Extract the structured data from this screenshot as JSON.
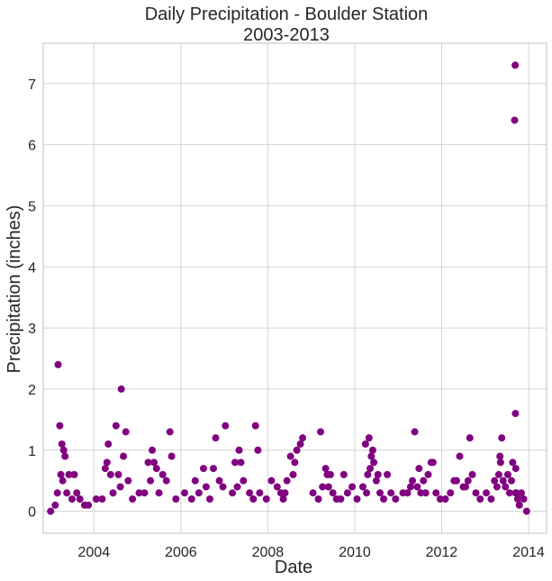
{
  "chart_data": {
    "type": "scatter",
    "title": "Daily Precipitation - Boulder Station",
    "subtitle": "2003-2013",
    "xlabel": "Date",
    "ylabel": "Precipitation (inches)",
    "xlim": [
      "2002-11-01",
      "2014-06-01"
    ],
    "ylim": [
      -0.36,
      7.66
    ],
    "x_ticks": [
      "2004",
      "2006",
      "2008",
      "2010",
      "2012",
      "2014"
    ],
    "x_tick_values": [
      "2004-01-01",
      "2006-01-01",
      "2008-01-01",
      "2010-01-01",
      "2012-01-01",
      "2014-01-01"
    ],
    "y_ticks": [
      "0",
      "1",
      "2",
      "3",
      "4",
      "5",
      "6",
      "7"
    ],
    "y_tick_values": [
      0,
      1,
      2,
      3,
      4,
      5,
      6,
      7
    ],
    "grid": true,
    "legend": "none",
    "colors": {
      "marker": "#800080",
      "grid": "#d3d3d3",
      "frame": "#cccccc",
      "text": "#262626"
    },
    "series": [
      {
        "x": [
          "2003-01-02",
          "2003-02-10",
          "2003-02-28",
          "2003-03-06",
          "2003-03-20",
          "2003-03-29",
          "2003-04-07",
          "2003-04-14",
          "2003-04-22",
          "2003-05-03",
          "2003-05-18",
          "2003-06-05",
          "2003-07-01",
          "2003-07-20",
          "2003-08-10",
          "2003-09-05",
          "2003-10-15",
          "2003-11-15",
          "2004-01-20",
          "2004-03-10",
          "2004-04-05",
          "2004-04-20",
          "2004-05-01",
          "2004-05-20",
          "2004-06-10",
          "2004-07-05",
          "2004-07-25",
          "2004-08-10",
          "2004-08-18",
          "2004-09-05",
          "2004-09-25",
          "2004-10-15",
          "2004-11-20",
          "2005-01-15",
          "2005-03-01",
          "2005-04-01",
          "2005-04-20",
          "2005-05-05",
          "2005-05-20",
          "2005-06-10",
          "2005-07-01",
          "2005-08-01",
          "2005-09-01",
          "2005-10-01",
          "2005-10-15",
          "2005-11-20",
          "2006-02-01",
          "2006-04-01",
          "2006-05-01",
          "2006-06-01",
          "2006-07-10",
          "2006-08-01",
          "2006-09-01",
          "2006-10-01",
          "2006-10-20",
          "2006-11-20",
          "2006-12-20",
          "2007-01-10",
          "2007-03-10",
          "2007-04-01",
          "2007-04-20",
          "2007-05-05",
          "2007-05-20",
          "2007-06-10",
          "2007-08-01",
          "2007-09-01",
          "2007-09-20",
          "2007-10-10",
          "2007-10-25",
          "2007-12-20",
          "2008-02-01",
          "2008-03-20",
          "2008-04-20",
          "2008-05-10",
          "2008-05-25",
          "2008-06-10",
          "2008-07-10",
          "2008-08-01",
          "2008-08-15",
          "2008-09-01",
          "2008-10-01",
          "2008-10-20",
          "2009-01-15",
          "2009-03-01",
          "2009-03-20",
          "2009-04-05",
          "2009-05-01",
          "2009-05-15",
          "2009-05-25",
          "2009-06-10",
          "2009-07-01",
          "2009-08-01",
          "2009-09-05",
          "2009-10-01",
          "2009-11-01",
          "2009-12-10",
          "2010-01-20",
          "2010-03-10",
          "2010-04-01",
          "2010-04-10",
          "2010-04-20",
          "2010-05-01",
          "2010-05-10",
          "2010-05-20",
          "2010-06-01",
          "2010-06-10",
          "2010-07-01",
          "2010-07-15",
          "2010-08-01",
          "2010-09-01",
          "2010-10-01",
          "2010-11-01",
          "2010-12-10",
          "2011-02-10",
          "2011-03-20",
          "2011-04-15",
          "2011-05-01",
          "2011-05-20",
          "2011-06-10",
          "2011-06-25",
          "2011-07-10",
          "2011-08-01",
          "2011-08-20",
          "2011-09-10",
          "2011-10-05",
          "2011-10-20",
          "2011-11-15",
          "2011-12-20",
          "2012-02-01",
          "2012-03-15",
          "2012-04-15",
          "2012-05-05",
          "2012-06-01",
          "2012-07-01",
          "2012-07-20",
          "2012-08-10",
          "2012-08-25",
          "2012-09-15",
          "2012-10-15",
          "2012-11-20",
          "2013-01-10",
          "2013-02-20",
          "2013-03-20",
          "2013-04-10",
          "2013-04-25",
          "2013-05-05",
          "2013-05-10",
          "2013-05-20",
          "2013-06-01",
          "2013-06-20",
          "2013-07-10",
          "2013-07-25",
          "2013-08-10",
          "2013-08-20",
          "2013-09-05",
          "2013-09-10",
          "2013-09-12",
          "2013-09-13",
          "2013-09-15",
          "2013-09-20",
          "2013-10-01",
          "2013-10-15",
          "2013-11-01",
          "2013-11-20",
          "2013-12-15"
        ],
        "y": [
          0,
          0.1,
          0.3,
          2.4,
          1.4,
          0.6,
          1.1,
          0.5,
          1.0,
          0.9,
          0.3,
          0.6,
          0.2,
          0.6,
          0.3,
          0.2,
          0.1,
          0.1,
          0.2,
          0.2,
          0.7,
          0.8,
          1.1,
          0.6,
          0.3,
          1.4,
          0.6,
          0.4,
          2.0,
          0.9,
          1.3,
          0.5,
          0.2,
          0.3,
          0.3,
          0.8,
          0.5,
          1.0,
          0.8,
          0.7,
          0.3,
          0.6,
          0.5,
          1.3,
          0.9,
          0.2,
          0.3,
          0.2,
          0.5,
          0.3,
          0.7,
          0.4,
          0.2,
          0.7,
          1.2,
          0.5,
          0.4,
          1.4,
          0.3,
          0.8,
          0.4,
          1.0,
          0.8,
          0.5,
          0.3,
          0.2,
          1.4,
          1.0,
          0.3,
          0.2,
          0.5,
          0.4,
          0.3,
          0.2,
          0.3,
          0.5,
          0.9,
          0.6,
          0.8,
          1.0,
          1.1,
          1.2,
          0.3,
          0.2,
          1.3,
          0.4,
          0.7,
          0.6,
          0.4,
          0.6,
          0.3,
          0.2,
          0.2,
          0.6,
          0.3,
          0.4,
          0.2,
          0.4,
          1.1,
          0.3,
          0.6,
          1.2,
          0.7,
          0.9,
          1.0,
          0.8,
          0.5,
          0.6,
          0.3,
          0.2,
          0.6,
          0.3,
          0.2,
          0.3,
          0.3,
          0.4,
          0.5,
          1.3,
          0.4,
          0.7,
          0.3,
          0.5,
          0.3,
          0.6,
          0.8,
          0.8,
          0.3,
          0.2,
          0.2,
          0.3,
          0.5,
          0.5,
          0.9,
          0.4,
          0.4,
          0.5,
          1.2,
          0.6,
          0.3,
          0.2,
          0.3,
          0.2,
          0.5,
          0.4,
          0.6,
          0.9,
          0.8,
          1.2,
          0.5,
          0.4,
          0.6,
          0.3,
          0.5,
          0.8,
          6.4,
          7.3,
          1.6,
          0.3,
          0.7,
          0.3,
          0.2,
          0.1,
          0.3,
          0.2,
          0
        ]
      }
    ]
  }
}
